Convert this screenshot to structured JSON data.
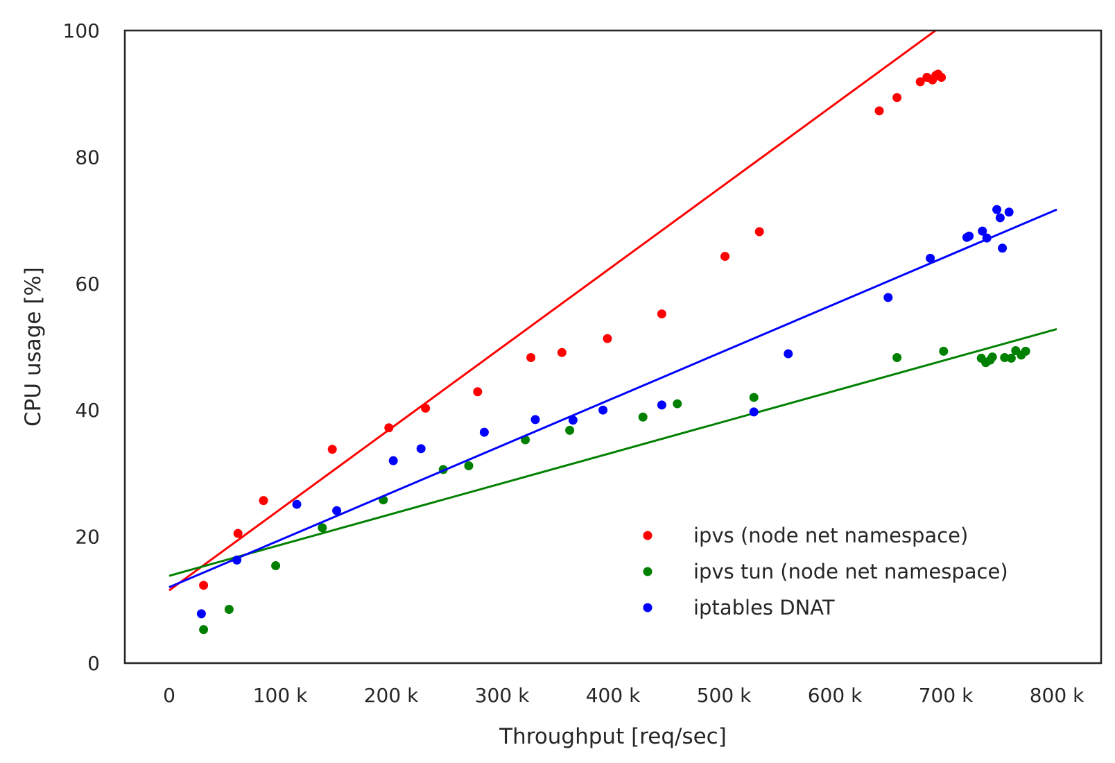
{
  "chart_data": {
    "type": "scatter",
    "title": "",
    "xlabel": "Throughput [req/sec]",
    "ylabel": "CPU usage [%]",
    "xlim": [
      -40000,
      840000
    ],
    "ylim": [
      0,
      100
    ],
    "x_ticks": [
      {
        "value": 0,
        "label": "0"
      },
      {
        "value": 100000,
        "label": "100 k"
      },
      {
        "value": 200000,
        "label": "200 k"
      },
      {
        "value": 300000,
        "label": "300 k"
      },
      {
        "value": 400000,
        "label": "400 k"
      },
      {
        "value": 500000,
        "label": "500 k"
      },
      {
        "value": 600000,
        "label": "600 k"
      },
      {
        "value": 700000,
        "label": "700 k"
      },
      {
        "value": 800000,
        "label": "800 k"
      }
    ],
    "y_ticks": [
      {
        "value": 0,
        "label": "0"
      },
      {
        "value": 20,
        "label": "20"
      },
      {
        "value": 40,
        "label": "40"
      },
      {
        "value": 60,
        "label": "60"
      },
      {
        "value": 80,
        "label": "80"
      },
      {
        "value": 100,
        "label": "100"
      }
    ],
    "grid": false,
    "legend_position": "bottom-right",
    "series": [
      {
        "name": "ipvs (node net namespace)",
        "color": "#ff0000",
        "points": [
          [
            31000,
            12.3
          ],
          [
            62000,
            20.5
          ],
          [
            85000,
            25.7
          ],
          [
            147000,
            33.8
          ],
          [
            198000,
            37.2
          ],
          [
            231000,
            40.3
          ],
          [
            278000,
            42.9
          ],
          [
            326000,
            48.3
          ],
          [
            354000,
            49.1
          ],
          [
            395000,
            51.3
          ],
          [
            444000,
            55.2
          ],
          [
            501000,
            64.3
          ],
          [
            532000,
            68.2
          ],
          [
            640000,
            87.3
          ],
          [
            656000,
            89.4
          ],
          [
            677000,
            91.9
          ],
          [
            683000,
            92.6
          ],
          [
            688000,
            92.2
          ],
          [
            691000,
            92.9
          ],
          [
            693000,
            93.1
          ],
          [
            696000,
            92.6
          ]
        ],
        "fit": [
          [
            0,
            11.5
          ],
          [
            800000,
            114.0
          ]
        ]
      },
      {
        "name": "ipvs tun (node net namespace)",
        "color": "#008000",
        "points": [
          [
            31000,
            5.3
          ],
          [
            54000,
            8.5
          ],
          [
            96000,
            15.4
          ],
          [
            138000,
            21.4
          ],
          [
            193000,
            25.8
          ],
          [
            247000,
            30.6
          ],
          [
            270000,
            31.2
          ],
          [
            321000,
            35.3
          ],
          [
            361000,
            36.8
          ],
          [
            427000,
            38.9
          ],
          [
            458000,
            41.0
          ],
          [
            527000,
            42.0
          ],
          [
            656000,
            48.3
          ],
          [
            698000,
            49.3
          ],
          [
            732000,
            48.2
          ],
          [
            736000,
            47.5
          ],
          [
            740000,
            47.9
          ],
          [
            742000,
            48.4
          ],
          [
            753000,
            48.3
          ],
          [
            759000,
            48.2
          ],
          [
            763000,
            49.4
          ],
          [
            768000,
            48.7
          ],
          [
            772000,
            49.3
          ]
        ],
        "fit": [
          [
            0,
            13.8
          ],
          [
            800000,
            52.8
          ]
        ]
      },
      {
        "name": "iptables DNAT",
        "color": "#0000ff",
        "points": [
          [
            29000,
            7.8
          ],
          [
            61000,
            16.3
          ],
          [
            115000,
            25.1
          ],
          [
            151000,
            24.1
          ],
          [
            202000,
            32.0
          ],
          [
            227000,
            33.9
          ],
          [
            284000,
            36.5
          ],
          [
            330000,
            38.5
          ],
          [
            364000,
            38.4
          ],
          [
            391000,
            40.0
          ],
          [
            444000,
            40.8
          ],
          [
            527000,
            39.7
          ],
          [
            558000,
            48.9
          ],
          [
            648000,
            57.8
          ],
          [
            686000,
            64.0
          ],
          [
            719000,
            67.3
          ],
          [
            721000,
            67.5
          ],
          [
            733000,
            68.3
          ],
          [
            737000,
            67.2
          ],
          [
            746000,
            71.7
          ],
          [
            749000,
            70.4
          ],
          [
            751000,
            65.6
          ],
          [
            757000,
            71.3
          ]
        ],
        "fit": [
          [
            0,
            12.0
          ],
          [
            800000,
            71.7
          ]
        ]
      }
    ]
  }
}
